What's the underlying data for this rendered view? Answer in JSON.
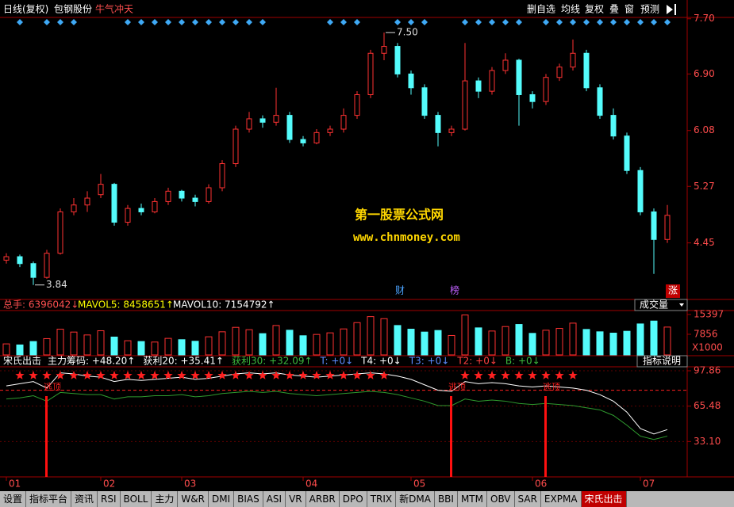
{
  "header": {
    "period": "日线(复权)",
    "stock": "包钢股份",
    "signal": "牛气冲天",
    "buttons": [
      "删自选",
      "均线",
      "复权",
      "叠",
      "窗",
      "预测"
    ]
  },
  "watermark": {
    "title": "第一股票公式网",
    "url": "www.chnmoney.com"
  },
  "events": [
    "财",
    "榜",
    "涨"
  ],
  "volume_header": {
    "total": "总手: 6396042↓",
    "mavol5": "MAVOL5: 8458651↑",
    "mavol10": "MAVOL10: 7154792↑",
    "selector": "成交量"
  },
  "indicator_header": {
    "name": "宋氏出击",
    "items": [
      {
        "text": "主力筹码: +48.20↑",
        "color": "#ffffff"
      },
      {
        "text": "获利20: +35.41↑",
        "color": "#ffffff"
      },
      {
        "text": "获利30: +32.09↑",
        "color": "#3cb83c"
      },
      {
        "text": "T: +0↓",
        "color": "#5c8cff"
      },
      {
        "text": "T4: +0↓",
        "color": "#ffffff"
      },
      {
        "text": "T3: +0↓",
        "color": "#5c8cff"
      },
      {
        "text": "T2: +0↓",
        "color": "#ff4040"
      },
      {
        "text": "B: +0↓",
        "color": "#3cb83c"
      }
    ],
    "button": "指标说明"
  },
  "tabs": [
    "设置",
    "指标平台",
    "资讯",
    "RSI",
    "BOLL",
    "主力",
    "W&R",
    "DMI",
    "BIAS",
    "ASI",
    "VR",
    "ARBR",
    "DPO",
    "TRIX",
    "新DMA",
    "BBI",
    "MTM",
    "OBV",
    "SAR",
    "EXPMA"
  ],
  "active_tab": "宋氏出击",
  "chart_data": [
    {
      "type": "candlestick",
      "categories": [
        "01",
        null,
        null,
        null,
        null,
        null,
        null,
        "02",
        null,
        null,
        null,
        null,
        null,
        "03",
        null,
        null,
        null,
        null,
        null,
        null,
        null,
        null,
        "04",
        null,
        null,
        null,
        null,
        null,
        null,
        null,
        "05",
        null,
        null,
        null,
        null,
        null,
        null,
        null,
        null,
        "06",
        null,
        null,
        null,
        null,
        null,
        null,
        null,
        "07",
        null,
        null
      ],
      "open": [
        4.2,
        4.25,
        4.15,
        3.95,
        4.3,
        4.9,
        5.0,
        5.15,
        5.3,
        4.75,
        4.95,
        4.9,
        5.05,
        5.2,
        5.1,
        5.05,
        5.25,
        5.6,
        6.1,
        6.25,
        6.2,
        6.3,
        5.95,
        5.9,
        6.05,
        6.1,
        6.3,
        6.6,
        7.2,
        7.3,
        6.9,
        6.7,
        6.3,
        6.05,
        6.1,
        6.8,
        6.65,
        6.95,
        7.1,
        6.6,
        6.5,
        6.85,
        7.0,
        7.2,
        6.7,
        6.3,
        6.0,
        5.5,
        4.9,
        4.5
      ],
      "high": [
        4.3,
        4.28,
        4.18,
        4.35,
        4.95,
        5.1,
        5.2,
        5.45,
        5.32,
        5.0,
        5.02,
        5.1,
        5.25,
        5.22,
        5.15,
        5.3,
        5.65,
        6.15,
        6.35,
        6.3,
        6.7,
        6.35,
        6.0,
        6.1,
        6.15,
        6.4,
        6.65,
        7.25,
        7.5,
        7.35,
        6.95,
        6.75,
        6.35,
        6.15,
        7.35,
        6.85,
        7.0,
        7.2,
        7.12,
        6.65,
        6.9,
        7.05,
        7.4,
        7.25,
        6.75,
        6.4,
        6.05,
        5.55,
        4.95,
        5.0
      ],
      "low": [
        4.15,
        4.1,
        3.84,
        3.93,
        4.28,
        4.85,
        4.9,
        5.1,
        4.7,
        4.7,
        4.85,
        4.88,
        5.0,
        5.05,
        4.98,
        5.02,
        5.2,
        5.55,
        6.05,
        6.12,
        6.15,
        5.9,
        5.85,
        5.88,
        6.0,
        6.05,
        6.25,
        6.55,
        7.1,
        6.85,
        6.6,
        6.25,
        5.85,
        6.0,
        6.08,
        6.55,
        6.6,
        6.9,
        6.15,
        6.4,
        6.45,
        6.8,
        6.95,
        6.65,
        6.25,
        5.95,
        5.45,
        4.85,
        4.0,
        4.45
      ],
      "close": [
        4.25,
        4.15,
        3.95,
        4.3,
        4.9,
        5.0,
        5.1,
        5.3,
        4.75,
        4.95,
        4.9,
        5.05,
        5.2,
        5.1,
        5.05,
        5.25,
        5.6,
        6.1,
        6.25,
        6.2,
        6.3,
        5.95,
        5.9,
        6.05,
        6.1,
        6.3,
        6.6,
        7.2,
        7.3,
        6.9,
        6.7,
        6.3,
        6.05,
        6.1,
        6.8,
        6.65,
        6.95,
        7.1,
        6.6,
        6.5,
        6.85,
        7.0,
        7.2,
        6.7,
        6.3,
        6.0,
        5.5,
        4.9,
        4.5,
        4.85
      ],
      "ylim": [
        3.63,
        7.72
      ],
      "yticks": [
        {
          "value": 7.7,
          "label": "7.70"
        },
        {
          "value": 6.9,
          "label": "6.90"
        },
        6.08,
        5.27,
        4.45
      ],
      "up_color": "#ff3232",
      "down_color": "#54fcfc",
      "axis_color": "#ff4c4c",
      "max_label": "7.50",
      "min_label": "3.84",
      "diamonds": [
        0,
        1,
        0,
        1,
        1,
        1,
        0,
        0,
        0,
        1,
        1,
        1,
        1,
        1,
        1,
        1,
        1,
        1,
        1,
        1,
        0,
        0,
        0,
        0,
        1,
        1,
        1,
        0,
        0,
        1,
        1,
        1,
        0,
        0,
        1,
        1,
        1,
        1,
        1,
        0,
        1,
        1,
        1,
        1,
        1,
        1,
        1,
        1,
        1,
        1
      ],
      "diamond_color": "#3fa9f5"
    },
    {
      "type": "bar",
      "values": [
        4200,
        3800,
        5100,
        6200,
        9800,
        8700,
        7600,
        9200,
        6800,
        5400,
        5100,
        4900,
        6300,
        5800,
        5200,
        6900,
        8800,
        10500,
        9600,
        8100,
        11200,
        9400,
        7300,
        7800,
        8400,
        9900,
        12300,
        14600,
        13800,
        11200,
        9800,
        8700,
        9300,
        7400,
        15200,
        10300,
        9100,
        10800,
        11600,
        8200,
        9400,
        10100,
        12100,
        9700,
        8800,
        8300,
        9000,
        11800,
        12900,
        10600
      ],
      "ylim": [
        0,
        16600
      ],
      "yticks": [
        15397,
        7856
      ],
      "unit": "X1000"
    },
    {
      "type": "line",
      "series": [
        {
          "color": "#ffffff",
          "values": [
            84,
            86,
            88,
            82,
            96,
            95,
            93,
            92,
            88,
            90,
            89,
            90,
            91,
            92,
            90,
            91,
            93,
            95,
            96,
            95,
            96,
            94,
            93,
            92,
            93,
            94,
            95,
            96,
            95,
            93,
            90,
            85,
            80,
            79,
            88,
            86,
            87,
            86,
            84,
            83,
            84,
            83,
            82,
            80,
            76,
            70,
            60,
            45,
            40,
            44
          ]
        },
        {
          "color": "#2e9a2e",
          "values": [
            72,
            73,
            75,
            70,
            78,
            77,
            76,
            76,
            72,
            74,
            74,
            75,
            75,
            76,
            74,
            75,
            77,
            78,
            79,
            78,
            79,
            77,
            76,
            75,
            76,
            77,
            78,
            79,
            78,
            76,
            73,
            70,
            66,
            66,
            72,
            70,
            71,
            70,
            68,
            67,
            68,
            67,
            66,
            64,
            62,
            57,
            48,
            38,
            35,
            38
          ]
        }
      ],
      "ylim": [
        0.7,
        101.5
      ],
      "yticks": [
        97.86,
        65.48,
        {
          "value": 33.1,
          "label": "33.10"
        }
      ],
      "ref_lines": [
        80
      ],
      "ref_color": "#ff2020",
      "stars": [
        0,
        1,
        1,
        1,
        1,
        1,
        1,
        1,
        1,
        1,
        1,
        1,
        1,
        1,
        1,
        1,
        1,
        1,
        1,
        1,
        1,
        1,
        1,
        1,
        1,
        1,
        1,
        1,
        1,
        0,
        0,
        0,
        0,
        0,
        1,
        1,
        1,
        1,
        1,
        1,
        1,
        1,
        1,
        0,
        0,
        0,
        0,
        0,
        0,
        0
      ],
      "escape": [
        0,
        0,
        0,
        1,
        0,
        0,
        0,
        0,
        0,
        0,
        0,
        0,
        0,
        0,
        0,
        0,
        0,
        0,
        0,
        0,
        0,
        0,
        0,
        0,
        0,
        0,
        0,
        0,
        0,
        0,
        0,
        0,
        0,
        1,
        0,
        0,
        0,
        0,
        0,
        0,
        1,
        0,
        0,
        0,
        0,
        0,
        0,
        0,
        0,
        0
      ],
      "escape_label": "逃顶"
    }
  ]
}
